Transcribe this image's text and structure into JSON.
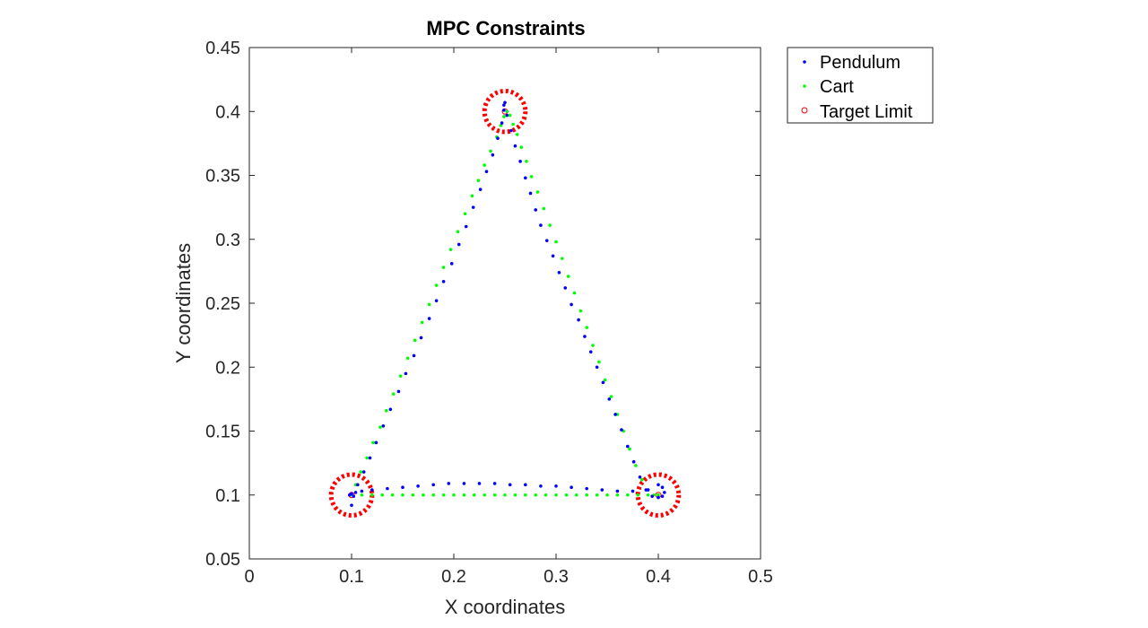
{
  "chart_data": {
    "type": "scatter",
    "title": "MPC Constraints",
    "xlabel": "X coordinates",
    "ylabel": "Y coordinates",
    "xlim": [
      0,
      0.5
    ],
    "ylim": [
      0.05,
      0.45
    ],
    "xticks": [
      "0",
      "0.1",
      "0.2",
      "0.3",
      "0.4",
      "0.5"
    ],
    "yticks": [
      "0.05",
      "0.1",
      "0.15",
      "0.2",
      "0.25",
      "0.3",
      "0.35",
      "0.4",
      "0.45"
    ],
    "xtick_values": [
      0,
      0.1,
      0.2,
      0.3,
      0.4,
      0.5
    ],
    "ytick_values": [
      0.05,
      0.1,
      0.15,
      0.2,
      0.25,
      0.3,
      0.35,
      0.4,
      0.45
    ],
    "grid": false,
    "legend_position": "outside top-right",
    "series": [
      {
        "name": "Pendulum",
        "color": "#0000ff",
        "marker": "dot",
        "x": [
          0.1,
          0.102,
          0.106,
          0.112,
          0.118,
          0.124,
          0.131,
          0.138,
          0.146,
          0.153,
          0.161,
          0.168,
          0.176,
          0.183,
          0.19,
          0.198,
          0.205,
          0.212,
          0.219,
          0.226,
          0.232,
          0.238,
          0.243,
          0.247,
          0.249,
          0.25,
          0.249,
          0.252,
          0.256,
          0.26,
          0.265,
          0.27,
          0.275,
          0.28,
          0.285,
          0.291,
          0.297,
          0.303,
          0.309,
          0.315,
          0.322,
          0.328,
          0.334,
          0.34,
          0.346,
          0.352,
          0.358,
          0.364,
          0.37,
          0.376,
          0.382,
          0.388,
          0.394,
          0.4,
          0.404,
          0.406,
          0.404,
          0.4,
          0.39,
          0.375,
          0.36,
          0.345,
          0.33,
          0.315,
          0.3,
          0.285,
          0.27,
          0.255,
          0.24,
          0.225,
          0.21,
          0.195,
          0.18,
          0.165,
          0.15,
          0.135,
          0.12,
          0.11,
          0.104,
          0.1,
          0.098
        ],
        "y": [
          0.092,
          0.099,
          0.108,
          0.118,
          0.129,
          0.141,
          0.154,
          0.167,
          0.181,
          0.195,
          0.209,
          0.223,
          0.238,
          0.252,
          0.267,
          0.281,
          0.296,
          0.31,
          0.325,
          0.339,
          0.353,
          0.366,
          0.379,
          0.391,
          0.401,
          0.407,
          0.405,
          0.397,
          0.385,
          0.373,
          0.361,
          0.348,
          0.336,
          0.323,
          0.311,
          0.299,
          0.287,
          0.274,
          0.262,
          0.249,
          0.237,
          0.224,
          0.212,
          0.2,
          0.188,
          0.175,
          0.163,
          0.151,
          0.138,
          0.126,
          0.114,
          0.104,
          0.099,
          0.098,
          0.099,
          0.102,
          0.106,
          0.108,
          0.104,
          0.103,
          0.103,
          0.104,
          0.105,
          0.106,
          0.107,
          0.107,
          0.108,
          0.108,
          0.109,
          0.109,
          0.109,
          0.109,
          0.108,
          0.107,
          0.106,
          0.105,
          0.104,
          0.103,
          0.102,
          0.101,
          0.1
        ]
      },
      {
        "name": "Cart",
        "color": "#00ff00",
        "marker": "dot",
        "x": [
          0.1,
          0.104,
          0.109,
          0.115,
          0.121,
          0.128,
          0.134,
          0.141,
          0.148,
          0.155,
          0.162,
          0.169,
          0.176,
          0.183,
          0.19,
          0.197,
          0.204,
          0.211,
          0.218,
          0.224,
          0.23,
          0.236,
          0.242,
          0.246,
          0.249,
          0.252,
          0.255,
          0.258,
          0.262,
          0.266,
          0.271,
          0.276,
          0.282,
          0.288,
          0.294,
          0.3,
          0.306,
          0.312,
          0.318,
          0.324,
          0.33,
          0.336,
          0.342,
          0.348,
          0.354,
          0.36,
          0.366,
          0.372,
          0.378,
          0.384,
          0.39,
          0.396,
          0.4,
          0.39,
          0.38,
          0.37,
          0.36,
          0.35,
          0.34,
          0.33,
          0.32,
          0.31,
          0.3,
          0.29,
          0.28,
          0.27,
          0.26,
          0.25,
          0.24,
          0.23,
          0.22,
          0.21,
          0.2,
          0.19,
          0.18,
          0.17,
          0.16,
          0.15,
          0.14,
          0.13,
          0.12,
          0.11
        ],
        "y": [
          0.1,
          0.108,
          0.118,
          0.129,
          0.141,
          0.153,
          0.166,
          0.179,
          0.193,
          0.207,
          0.221,
          0.235,
          0.249,
          0.264,
          0.278,
          0.292,
          0.306,
          0.32,
          0.334,
          0.346,
          0.358,
          0.369,
          0.38,
          0.389,
          0.396,
          0.4,
          0.397,
          0.39,
          0.382,
          0.372,
          0.361,
          0.349,
          0.337,
          0.324,
          0.311,
          0.298,
          0.285,
          0.271,
          0.258,
          0.244,
          0.231,
          0.217,
          0.204,
          0.19,
          0.177,
          0.163,
          0.15,
          0.136,
          0.123,
          0.112,
          0.104,
          0.1,
          0.1,
          0.1,
          0.1,
          0.1,
          0.1,
          0.1,
          0.1,
          0.1,
          0.1,
          0.1,
          0.1,
          0.1,
          0.1,
          0.1,
          0.1,
          0.1,
          0.1,
          0.1,
          0.1,
          0.1,
          0.1,
          0.1,
          0.1,
          0.1,
          0.1,
          0.1,
          0.1,
          0.1,
          0.1,
          0.1
        ]
      },
      {
        "name": "Target Limit",
        "color": "#ff0000",
        "marker": "circle",
        "centers": [
          [
            0.1,
            0.1
          ],
          [
            0.25,
            0.4
          ],
          [
            0.4,
            0.1
          ]
        ],
        "radius": 0.02
      }
    ]
  }
}
